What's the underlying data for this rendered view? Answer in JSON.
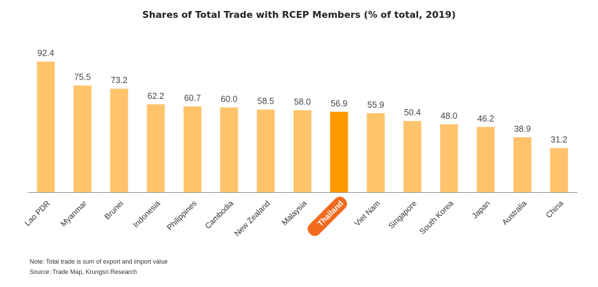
{
  "chart_data": {
    "type": "bar",
    "title": "Shares of Total Trade with RCEP Members (% of total, 2019)",
    "categories": [
      "Lao PDR",
      "Myanmar",
      "Brunei",
      "Indonesia",
      "Philippines",
      "Cambodia",
      "New Zealand",
      "Malaysia",
      "Thailand",
      "Viet Nam",
      "Singapore",
      "South Korea",
      "Japan",
      "Australia",
      "China"
    ],
    "values": [
      92.4,
      75.5,
      73.2,
      62.2,
      60.7,
      60.0,
      58.5,
      58.0,
      56.9,
      55.9,
      50.4,
      48.0,
      46.2,
      38.9,
      31.2
    ],
    "highlight": "Thailand",
    "ylim": [
      0,
      100
    ],
    "grid": false,
    "colors": {
      "bar": "#FFC46B",
      "highlight": "#FF9900",
      "label_badge": "#F26B1D",
      "axis": "#999999"
    }
  },
  "notes": {
    "note": "Note: Total trade is sum of export and import value",
    "source": "Source: Trade Map, Krungsri Research"
  }
}
